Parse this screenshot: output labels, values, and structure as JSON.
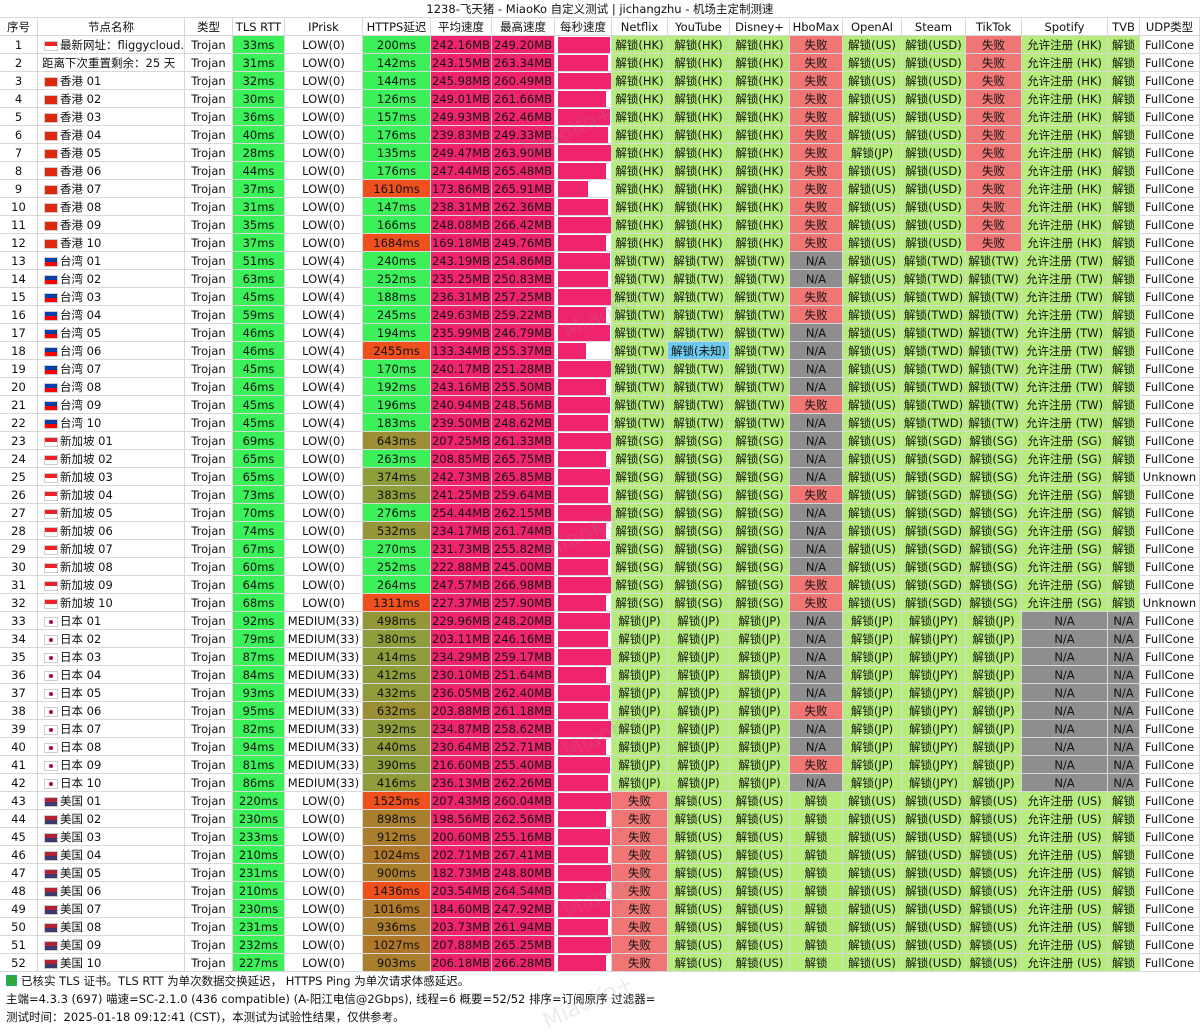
{
  "title": "1238-飞天猪 - MiaoKo 自定义测试 | jichangzhu - 机场主定制测速",
  "columns": [
    "序号",
    "节点名称",
    "类型",
    "TLS RTT",
    "IPrisk",
    "HTTPS延迟",
    "平均速度",
    "最高速度",
    "每秒速度",
    "Netflix",
    "YouTube",
    "Disney+",
    "HboMax",
    "OpenAI",
    "Steam",
    "TikTok",
    "Spotify",
    "TVB",
    "UDP类型"
  ],
  "rows": [
    [
      1,
      "最新网址：fliggycloud.cc",
      "Trojan",
      "33ms",
      "LOW(0)",
      "200ms",
      "242.16MB",
      "249.20MB",
      null,
      "解锁(HK)",
      "解锁(HK)",
      "解锁(HK)",
      "失败",
      "解锁(US)",
      "解锁(USD)",
      "失败",
      "允许注册 (HK)",
      "解锁",
      "FullCone"
    ],
    [
      2,
      "距离下次重置剩余：25 天",
      "Trojan",
      "31ms",
      "LOW(0)",
      "142ms",
      "243.15MB",
      "263.34MB",
      null,
      "解锁(HK)",
      "解锁(HK)",
      "解锁(HK)",
      "失败",
      "解锁(US)",
      "解锁(USD)",
      "失败",
      "允许注册 (HK)",
      "解锁",
      "FullCone"
    ],
    [
      3,
      "香港 01",
      "Trojan",
      "32ms",
      "LOW(0)",
      "144ms",
      "245.98MB",
      "260.49MB",
      null,
      "解锁(HK)",
      "解锁(HK)",
      "解锁(HK)",
      "失败",
      "解锁(US)",
      "解锁(USD)",
      "失败",
      "允许注册 (HK)",
      "解锁",
      "FullCone"
    ],
    [
      4,
      "香港 02",
      "Trojan",
      "30ms",
      "LOW(0)",
      "126ms",
      "249.01MB",
      "261.66MB",
      null,
      "解锁(HK)",
      "解锁(HK)",
      "解锁(HK)",
      "失败",
      "解锁(US)",
      "解锁(USD)",
      "失败",
      "允许注册 (HK)",
      "解锁",
      "FullCone"
    ],
    [
      5,
      "香港 03",
      "Trojan",
      "36ms",
      "LOW(0)",
      "157ms",
      "249.93MB",
      "262.46MB",
      null,
      "解锁(HK)",
      "解锁(HK)",
      "解锁(HK)",
      "失败",
      "解锁(US)",
      "解锁(USD)",
      "失败",
      "允许注册 (HK)",
      "解锁",
      "FullCone"
    ],
    [
      6,
      "香港 04",
      "Trojan",
      "40ms",
      "LOW(0)",
      "176ms",
      "239.83MB",
      "249.33MB",
      null,
      "解锁(HK)",
      "解锁(HK)",
      "解锁(HK)",
      "失败",
      "解锁(US)",
      "解锁(USD)",
      "失败",
      "允许注册 (HK)",
      "解锁",
      "FullCone"
    ],
    [
      7,
      "香港 05",
      "Trojan",
      "28ms",
      "LOW(0)",
      "135ms",
      "249.47MB",
      "263.90MB",
      null,
      "解锁(HK)",
      "解锁(HK)",
      "解锁(HK)",
      "失败",
      "解锁(JP)",
      "解锁(USD)",
      "失败",
      "允许注册 (HK)",
      "解锁",
      "FullCone"
    ],
    [
      8,
      "香港 06",
      "Trojan",
      "44ms",
      "LOW(0)",
      "176ms",
      "247.44MB",
      "265.48MB",
      null,
      "解锁(HK)",
      "解锁(HK)",
      "解锁(HK)",
      "失败",
      "解锁(US)",
      "解锁(USD)",
      "失败",
      "允许注册 (HK)",
      "解锁",
      "FullCone"
    ],
    [
      9,
      "香港 07",
      "Trojan",
      "37ms",
      "LOW(0)",
      "1610ms",
      "173.86MB",
      "265.91MB",
      null,
      "解锁(HK)",
      "解锁(HK)",
      "解锁(HK)",
      "失败",
      "解锁(US)",
      "解锁(USD)",
      "失败",
      "允许注册 (HK)",
      "解锁",
      "FullCone"
    ],
    [
      10,
      "香港 08",
      "Trojan",
      "31ms",
      "LOW(0)",
      "147ms",
      "238.31MB",
      "262.36MB",
      null,
      "解锁(HK)",
      "解锁(HK)",
      "解锁(HK)",
      "失败",
      "解锁(US)",
      "解锁(USD)",
      "失败",
      "允许注册 (HK)",
      "解锁",
      "FullCone"
    ],
    [
      11,
      "香港 09",
      "Trojan",
      "35ms",
      "LOW(0)",
      "166ms",
      "248.08MB",
      "266.42MB",
      null,
      "解锁(HK)",
      "解锁(HK)",
      "解锁(HK)",
      "失败",
      "解锁(US)",
      "解锁(USD)",
      "失败",
      "允许注册 (HK)",
      "解锁",
      "FullCone"
    ],
    [
      12,
      "香港 10",
      "Trojan",
      "37ms",
      "LOW(0)",
      "1684ms",
      "169.18MB",
      "249.76MB",
      null,
      "解锁(HK)",
      "解锁(HK)",
      "解锁(HK)",
      "失败",
      "解锁(US)",
      "解锁(USD)",
      "失败",
      "允许注册 (HK)",
      "解锁",
      "FullCone"
    ],
    [
      13,
      "台湾 01",
      "Trojan",
      "51ms",
      "LOW(4)",
      "240ms",
      "243.19MB",
      "254.86MB",
      null,
      "解锁(TW)",
      "解锁(TW)",
      "解锁(TW)",
      "N/A",
      "解锁(US)",
      "解锁(TWD)",
      "解锁(TW)",
      "允许注册 (TW)",
      "解锁",
      "FullCone"
    ],
    [
      14,
      "台湾 02",
      "Trojan",
      "63ms",
      "LOW(4)",
      "252ms",
      "235.25MB",
      "250.83MB",
      null,
      "解锁(TW)",
      "解锁(TW)",
      "解锁(TW)",
      "N/A",
      "解锁(US)",
      "解锁(TWD)",
      "解锁(TW)",
      "允许注册 (TW)",
      "解锁",
      "FullCone"
    ],
    [
      15,
      "台湾 03",
      "Trojan",
      "45ms",
      "LOW(4)",
      "188ms",
      "236.31MB",
      "257.25MB",
      null,
      "解锁(TW)",
      "解锁(TW)",
      "解锁(TW)",
      "失败",
      "解锁(US)",
      "解锁(TWD)",
      "解锁(TW)",
      "允许注册 (TW)",
      "解锁",
      "FullCone"
    ],
    [
      16,
      "台湾 04",
      "Trojan",
      "59ms",
      "LOW(4)",
      "245ms",
      "249.63MB",
      "259.22MB",
      null,
      "解锁(TW)",
      "解锁(TW)",
      "解锁(TW)",
      "失败",
      "解锁(US)",
      "解锁(TWD)",
      "解锁(TW)",
      "允许注册 (TW)",
      "解锁",
      "FullCone"
    ],
    [
      17,
      "台湾 05",
      "Trojan",
      "46ms",
      "LOW(4)",
      "194ms",
      "235.99MB",
      "246.79MB",
      null,
      "解锁(TW)",
      "解锁(TW)",
      "解锁(TW)",
      "N/A",
      "解锁(US)",
      "解锁(TWD)",
      "解锁(TW)",
      "允许注册 (TW)",
      "解锁",
      "FullCone"
    ],
    [
      18,
      "台湾 06",
      "Trojan",
      "46ms",
      "LOW(4)",
      "2455ms",
      "133.34MB",
      "255.37MB",
      null,
      "解锁(TW)",
      "解锁(未知)",
      "解锁(TW)",
      "N/A",
      "解锁(US)",
      "解锁(TWD)",
      "解锁(TW)",
      "允许注册 (TW)",
      "解锁",
      "FullCone"
    ],
    [
      19,
      "台湾 07",
      "Trojan",
      "45ms",
      "LOW(4)",
      "170ms",
      "240.17MB",
      "251.28MB",
      null,
      "解锁(TW)",
      "解锁(TW)",
      "解锁(TW)",
      "N/A",
      "解锁(US)",
      "解锁(TWD)",
      "解锁(TW)",
      "允许注册 (TW)",
      "解锁",
      "FullCone"
    ],
    [
      20,
      "台湾 08",
      "Trojan",
      "46ms",
      "LOW(4)",
      "192ms",
      "243.16MB",
      "255.50MB",
      null,
      "解锁(TW)",
      "解锁(TW)",
      "解锁(TW)",
      "N/A",
      "解锁(US)",
      "解锁(TWD)",
      "解锁(TW)",
      "允许注册 (TW)",
      "解锁",
      "FullCone"
    ],
    [
      21,
      "台湾 09",
      "Trojan",
      "45ms",
      "LOW(4)",
      "196ms",
      "240.94MB",
      "248.56MB",
      null,
      "解锁(TW)",
      "解锁(TW)",
      "解锁(TW)",
      "失败",
      "解锁(US)",
      "解锁(TWD)",
      "解锁(TW)",
      "允许注册 (TW)",
      "解锁",
      "FullCone"
    ],
    [
      22,
      "台湾 10",
      "Trojan",
      "45ms",
      "LOW(4)",
      "183ms",
      "239.50MB",
      "248.62MB",
      null,
      "解锁(TW)",
      "解锁(TW)",
      "解锁(TW)",
      "N/A",
      "解锁(US)",
      "解锁(TWD)",
      "解锁(TW)",
      "允许注册 (TW)",
      "解锁",
      "FullCone"
    ],
    [
      23,
      "新加坡 01",
      "Trojan",
      "69ms",
      "LOW(0)",
      "643ms",
      "207.25MB",
      "261.33MB",
      null,
      "解锁(SG)",
      "解锁(SG)",
      "解锁(SG)",
      "N/A",
      "解锁(US)",
      "解锁(SGD)",
      "解锁(SG)",
      "允许注册 (SG)",
      "解锁",
      "FullCone"
    ],
    [
      24,
      "新加坡 02",
      "Trojan",
      "65ms",
      "LOW(0)",
      "263ms",
      "208.85MB",
      "265.75MB",
      null,
      "解锁(SG)",
      "解锁(SG)",
      "解锁(SG)",
      "N/A",
      "解锁(US)",
      "解锁(SGD)",
      "解锁(SG)",
      "允许注册 (SG)",
      "解锁",
      "FullCone"
    ],
    [
      25,
      "新加坡 03",
      "Trojan",
      "65ms",
      "LOW(0)",
      "374ms",
      "242.73MB",
      "265.85MB",
      null,
      "解锁(SG)",
      "解锁(SG)",
      "解锁(SG)",
      "N/A",
      "解锁(US)",
      "解锁(SGD)",
      "解锁(SG)",
      "允许注册 (SG)",
      "解锁",
      "Unknown"
    ],
    [
      26,
      "新加坡 04",
      "Trojan",
      "73ms",
      "LOW(0)",
      "383ms",
      "241.25MB",
      "259.64MB",
      null,
      "解锁(SG)",
      "解锁(SG)",
      "解锁(SG)",
      "失败",
      "解锁(US)",
      "解锁(SGD)",
      "解锁(SG)",
      "允许注册 (SG)",
      "解锁",
      "FullCone"
    ],
    [
      27,
      "新加坡 05",
      "Trojan",
      "70ms",
      "LOW(0)",
      "276ms",
      "254.44MB",
      "262.15MB",
      null,
      "解锁(SG)",
      "解锁(SG)",
      "解锁(SG)",
      "N/A",
      "解锁(US)",
      "解锁(SGD)",
      "解锁(SG)",
      "允许注册 (SG)",
      "解锁",
      "FullCone"
    ],
    [
      28,
      "新加坡 06",
      "Trojan",
      "74ms",
      "LOW(0)",
      "532ms",
      "234.17MB",
      "261.74MB",
      null,
      "解锁(SG)",
      "解锁(SG)",
      "解锁(SG)",
      "N/A",
      "解锁(US)",
      "解锁(SGD)",
      "解锁(SG)",
      "允许注册 (SG)",
      "解锁",
      "FullCone"
    ],
    [
      29,
      "新加坡 07",
      "Trojan",
      "67ms",
      "LOW(0)",
      "270ms",
      "231.73MB",
      "255.82MB",
      null,
      "解锁(SG)",
      "解锁(SG)",
      "解锁(SG)",
      "N/A",
      "解锁(US)",
      "解锁(SGD)",
      "解锁(SG)",
      "允许注册 (SG)",
      "解锁",
      "FullCone"
    ],
    [
      30,
      "新加坡 08",
      "Trojan",
      "60ms",
      "LOW(0)",
      "252ms",
      "222.88MB",
      "245.00MB",
      null,
      "解锁(SG)",
      "解锁(SG)",
      "解锁(SG)",
      "N/A",
      "解锁(US)",
      "解锁(SGD)",
      "解锁(SG)",
      "允许注册 (SG)",
      "解锁",
      "FullCone"
    ],
    [
      31,
      "新加坡 09",
      "Trojan",
      "64ms",
      "LOW(0)",
      "264ms",
      "247.57MB",
      "266.98MB",
      null,
      "解锁(SG)",
      "解锁(SG)",
      "解锁(SG)",
      "失败",
      "解锁(US)",
      "解锁(SGD)",
      "解锁(SG)",
      "允许注册 (SG)",
      "解锁",
      "FullCone"
    ],
    [
      32,
      "新加坡 10",
      "Trojan",
      "68ms",
      "LOW(0)",
      "1311ms",
      "227.37MB",
      "257.90MB",
      null,
      "解锁(SG)",
      "解锁(SG)",
      "解锁(SG)",
      "失败",
      "解锁(US)",
      "解锁(SGD)",
      "解锁(SG)",
      "允许注册 (SG)",
      "解锁",
      "Unknown"
    ],
    [
      33,
      "日本 01",
      "Trojan",
      "92ms",
      "MEDIUM(33)",
      "498ms",
      "229.96MB",
      "248.20MB",
      null,
      "解锁(JP)",
      "解锁(JP)",
      "解锁(JP)",
      "N/A",
      "解锁(JP)",
      "解锁(JPY)",
      "解锁(JP)",
      "N/A",
      "N/A",
      "FullCone"
    ],
    [
      34,
      "日本 02",
      "Trojan",
      "79ms",
      "MEDIUM(33)",
      "380ms",
      "203.11MB",
      "246.16MB",
      null,
      "解锁(JP)",
      "解锁(JP)",
      "解锁(JP)",
      "N/A",
      "解锁(JP)",
      "解锁(JPY)",
      "解锁(JP)",
      "N/A",
      "N/A",
      "FullCone"
    ],
    [
      35,
      "日本 03",
      "Trojan",
      "87ms",
      "MEDIUM(33)",
      "414ms",
      "234.29MB",
      "259.17MB",
      null,
      "解锁(JP)",
      "解锁(JP)",
      "解锁(JP)",
      "N/A",
      "解锁(JP)",
      "解锁(JPY)",
      "解锁(JP)",
      "N/A",
      "N/A",
      "FullCone"
    ],
    [
      36,
      "日本 04",
      "Trojan",
      "84ms",
      "MEDIUM(33)",
      "412ms",
      "230.10MB",
      "251.64MB",
      null,
      "解锁(JP)",
      "解锁(JP)",
      "解锁(JP)",
      "N/A",
      "解锁(JP)",
      "解锁(JPY)",
      "解锁(JP)",
      "N/A",
      "N/A",
      "FullCone"
    ],
    [
      37,
      "日本 05",
      "Trojan",
      "93ms",
      "MEDIUM(33)",
      "432ms",
      "236.05MB",
      "262.40MB",
      null,
      "解锁(JP)",
      "解锁(JP)",
      "解锁(JP)",
      "N/A",
      "解锁(JP)",
      "解锁(JPY)",
      "解锁(JP)",
      "N/A",
      "N/A",
      "FullCone"
    ],
    [
      38,
      "日本 06",
      "Trojan",
      "95ms",
      "MEDIUM(33)",
      "632ms",
      "203.88MB",
      "261.18MB",
      null,
      "解锁(JP)",
      "解锁(JP)",
      "解锁(JP)",
      "失败",
      "解锁(JP)",
      "解锁(JPY)",
      "解锁(JP)",
      "N/A",
      "N/A",
      "FullCone"
    ],
    [
      39,
      "日本 07",
      "Trojan",
      "82ms",
      "MEDIUM(33)",
      "392ms",
      "234.87MB",
      "258.62MB",
      null,
      "解锁(JP)",
      "解锁(JP)",
      "解锁(JP)",
      "N/A",
      "解锁(JP)",
      "解锁(JPY)",
      "解锁(JP)",
      "N/A",
      "N/A",
      "FullCone"
    ],
    [
      40,
      "日本 08",
      "Trojan",
      "94ms",
      "MEDIUM(33)",
      "440ms",
      "230.64MB",
      "252.71MB",
      null,
      "解锁(JP)",
      "解锁(JP)",
      "解锁(JP)",
      "N/A",
      "解锁(JP)",
      "解锁(JPY)",
      "解锁(JP)",
      "N/A",
      "N/A",
      "FullCone"
    ],
    [
      41,
      "日本 09",
      "Trojan",
      "81ms",
      "MEDIUM(33)",
      "390ms",
      "216.60MB",
      "255.40MB",
      null,
      "解锁(JP)",
      "解锁(JP)",
      "解锁(JP)",
      "失败",
      "解锁(JP)",
      "解锁(JPY)",
      "解锁(JP)",
      "N/A",
      "N/A",
      "FullCone"
    ],
    [
      42,
      "日本 10",
      "Trojan",
      "86ms",
      "MEDIUM(33)",
      "416ms",
      "236.13MB",
      "262.26MB",
      null,
      "解锁(JP)",
      "解锁(JP)",
      "解锁(JP)",
      "N/A",
      "解锁(JP)",
      "解锁(JPY)",
      "解锁(JP)",
      "N/A",
      "N/A",
      "FullCone"
    ],
    [
      43,
      "美国 01",
      "Trojan",
      "220ms",
      "LOW(0)",
      "1525ms",
      "207.43MB",
      "260.04MB",
      null,
      "失败",
      "解锁(US)",
      "解锁(US)",
      "解锁",
      "解锁(US)",
      "解锁(USD)",
      "解锁(US)",
      "允许注册 (US)",
      "解锁",
      "FullCone"
    ],
    [
      44,
      "美国 02",
      "Trojan",
      "230ms",
      "LOW(0)",
      "898ms",
      "198.56MB",
      "262.56MB",
      null,
      "失败",
      "解锁(US)",
      "解锁(US)",
      "解锁",
      "解锁(US)",
      "解锁(USD)",
      "解锁(US)",
      "允许注册 (US)",
      "解锁",
      "FullCone"
    ],
    [
      45,
      "美国 03",
      "Trojan",
      "233ms",
      "LOW(0)",
      "912ms",
      "200.60MB",
      "255.16MB",
      null,
      "失败",
      "解锁(US)",
      "解锁(US)",
      "解锁",
      "解锁(US)",
      "解锁(USD)",
      "解锁(US)",
      "允许注册 (US)",
      "解锁",
      "FullCone"
    ],
    [
      46,
      "美国 04",
      "Trojan",
      "210ms",
      "LOW(0)",
      "1024ms",
      "202.71MB",
      "267.41MB",
      null,
      "失败",
      "解锁(US)",
      "解锁(US)",
      "解锁",
      "解锁(US)",
      "解锁(USD)",
      "解锁(US)",
      "允许注册 (US)",
      "解锁",
      "FullCone"
    ],
    [
      47,
      "美国 05",
      "Trojan",
      "231ms",
      "LOW(0)",
      "900ms",
      "182.73MB",
      "248.80MB",
      null,
      "失败",
      "解锁(US)",
      "解锁(US)",
      "解锁",
      "解锁(US)",
      "解锁(USD)",
      "解锁(US)",
      "允许注册 (US)",
      "解锁",
      "FullCone"
    ],
    [
      48,
      "美国 06",
      "Trojan",
      "210ms",
      "LOW(0)",
      "1436ms",
      "203.54MB",
      "264.54MB",
      null,
      "失败",
      "解锁(US)",
      "解锁(US)",
      "解锁",
      "解锁(US)",
      "解锁(USD)",
      "解锁(US)",
      "允许注册 (US)",
      "解锁",
      "FullCone"
    ],
    [
      49,
      "美国 07",
      "Trojan",
      "230ms",
      "LOW(0)",
      "1016ms",
      "184.60MB",
      "247.92MB",
      null,
      "失败",
      "解锁(US)",
      "解锁(US)",
      "解锁",
      "解锁(US)",
      "解锁(USD)",
      "解锁(US)",
      "允许注册 (US)",
      "解锁",
      "FullCone"
    ],
    [
      50,
      "美国 08",
      "Trojan",
      "231ms",
      "LOW(0)",
      "936ms",
      "203.73MB",
      "261.94MB",
      null,
      "失败",
      "解锁(US)",
      "解锁(US)",
      "解锁",
      "解锁(US)",
      "解锁(USD)",
      "解锁(US)",
      "允许注册 (US)",
      "解锁",
      "FullCone"
    ],
    [
      51,
      "美国 09",
      "Trojan",
      "232ms",
      "LOW(0)",
      "1027ms",
      "207.88MB",
      "265.25MB",
      null,
      "失败",
      "解锁(US)",
      "解锁(US)",
      "解锁",
      "解锁(US)",
      "解锁(USD)",
      "解锁(US)",
      "允许注册 (US)",
      "解锁",
      "FullCone"
    ],
    [
      52,
      "美国 10",
      "Trojan",
      "227ms",
      "LOW(0)",
      "903ms",
      "206.18MB",
      "266.28MB",
      null,
      "失败",
      "解锁(US)",
      "解锁(US)",
      "解锁",
      "解锁(US)",
      "解锁(USD)",
      "解锁(US)",
      "允许注册 (US)",
      "解锁",
      "FullCone"
    ]
  ],
  "footer": [
    "已核实 TLS 证书。TLS RTT 为单次数据交换延迟， HTTPS Ping 为单次请求体感延迟。",
    "主端=4.3.3 (697) 喵速=SC-2.1.0 (436 compatible) (A-阳江电信@2Gbps), 线程=6 概要=52/52 排序=订阅原序 过滤器=",
    "测试时间：2025-01-18 09:12:41 (CST)，本测试为试验性结果，仅供参考。"
  ],
  "watermark": "MiaoKo+",
  "colors": {
    "tls": "#3cf05a",
    "speed": "#f0236e",
    "unlock": "#b6ec7c",
    "status": {
      "失败": "#f07575",
      "N/A": "#8e8e8e",
      "解锁(未知)": "#6ccaee"
    }
  }
}
